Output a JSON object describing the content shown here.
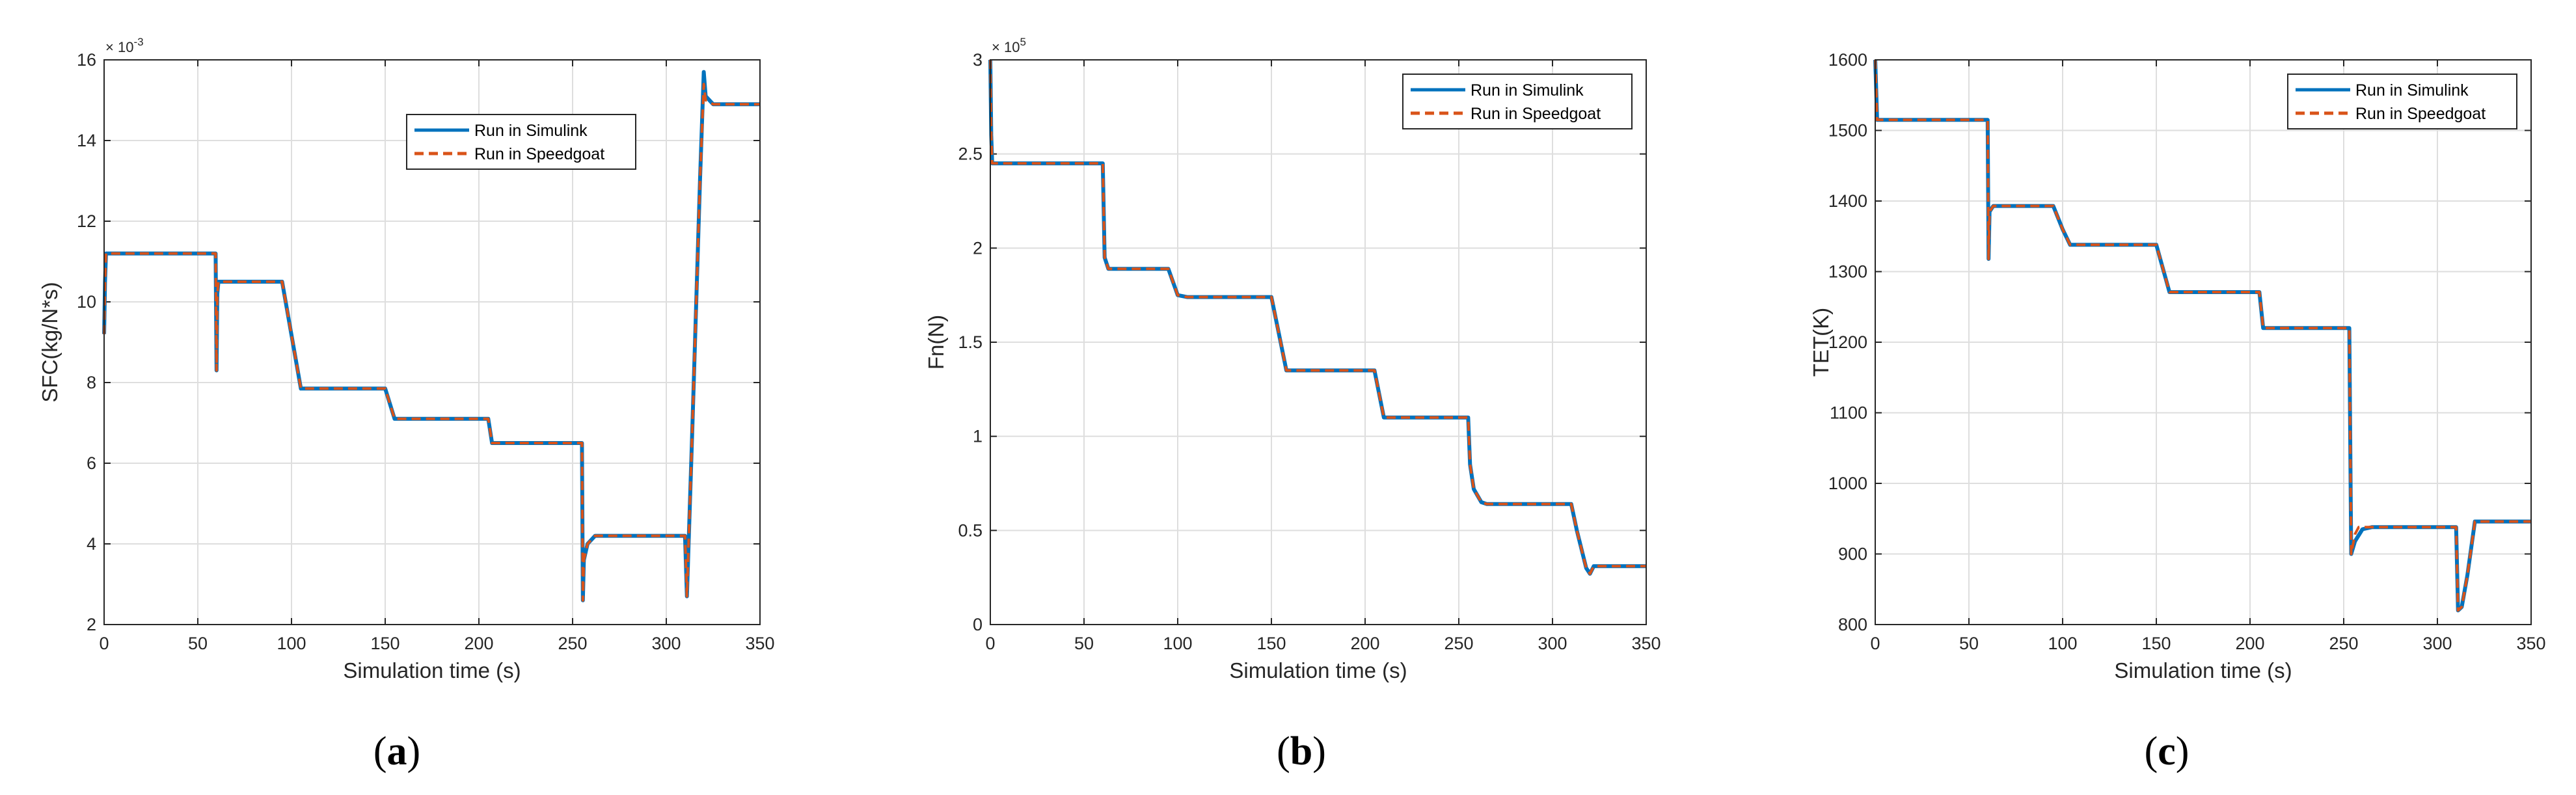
{
  "chart_data": [
    {
      "type": "line",
      "panel_label_open": "(",
      "panel_label_letter": "a",
      "panel_label_close": ")",
      "xlabel": "Simulation time (s)",
      "ylabel": "SFC(kg/N*s)",
      "exponent_base": "× 10",
      "exponent_power": "-3",
      "xlim": [
        0,
        350
      ],
      "ylim": [
        2,
        16
      ],
      "xticks": [
        0,
        50,
        100,
        150,
        200,
        250,
        300,
        350
      ],
      "yticks": [
        2,
        4,
        6,
        8,
        10,
        12,
        14,
        16
      ],
      "grid": true,
      "legend_position": "top-right",
      "series": [
        {
          "name": "Run in Simulink",
          "color": "#0072BD",
          "style": "solid",
          "points": [
            [
              0,
              9.2
            ],
            [
              0.5,
              10.5
            ],
            [
              1,
              11.2
            ],
            [
              59.5,
              11.2
            ],
            [
              60,
              8.3
            ],
            [
              60.4,
              10.2
            ],
            [
              61,
              10.5
            ],
            [
              95,
              10.5
            ],
            [
              105,
              7.85
            ],
            [
              150,
              7.85
            ],
            [
              155,
              7.1
            ],
            [
              205,
              7.1
            ],
            [
              207,
              6.5
            ],
            [
              255,
              6.5
            ],
            [
              255.5,
              2.6
            ],
            [
              256,
              3.6
            ],
            [
              258,
              4.0
            ],
            [
              262,
              4.2
            ],
            [
              310,
              4.2
            ],
            [
              311,
              2.7
            ],
            [
              314,
              7
            ],
            [
              318,
              13
            ],
            [
              320,
              15.7
            ],
            [
              321,
              15.1
            ],
            [
              325,
              14.9
            ],
            [
              350,
              14.9
            ]
          ]
        },
        {
          "name": "Run in Speedgoat",
          "color": "#D95319",
          "style": "dashed",
          "points": [
            [
              0,
              9.2
            ],
            [
              0.5,
              10.5
            ],
            [
              1,
              11.2
            ],
            [
              59.5,
              11.2
            ],
            [
              60,
              8.3
            ],
            [
              60.4,
              10.2
            ],
            [
              61,
              10.5
            ],
            [
              95,
              10.5
            ],
            [
              105,
              7.85
            ],
            [
              150,
              7.85
            ],
            [
              155,
              7.1
            ],
            [
              205,
              7.1
            ],
            [
              207,
              6.5
            ],
            [
              255,
              6.5
            ],
            [
              255.5,
              2.6
            ],
            [
              256,
              3.6
            ],
            [
              258,
              4.0
            ],
            [
              262,
              4.2
            ],
            [
              310,
              4.2
            ],
            [
              311,
              2.7
            ],
            [
              314,
              7
            ],
            [
              318,
              13
            ],
            [
              320,
              15.4
            ],
            [
              321,
              15.0
            ],
            [
              325,
              14.9
            ],
            [
              350,
              14.9
            ]
          ]
        }
      ]
    },
    {
      "type": "line",
      "panel_label_open": "(",
      "panel_label_letter": "b",
      "panel_label_close": ")",
      "xlabel": "Simulation time (s)",
      "ylabel": "Fn(N)",
      "exponent_base": "× 10",
      "exponent_power": "5",
      "xlim": [
        0,
        350
      ],
      "ylim": [
        0,
        3
      ],
      "xticks": [
        0,
        50,
        100,
        150,
        200,
        250,
        300,
        350
      ],
      "yticks": [
        0,
        0.5,
        1,
        1.5,
        2,
        2.5,
        3
      ],
      "grid": true,
      "legend_position": "top-right",
      "series": [
        {
          "name": "Run in Simulink",
          "color": "#0072BD",
          "style": "solid",
          "points": [
            [
              0,
              3.0
            ],
            [
              0.5,
              2.6
            ],
            [
              1,
              2.45
            ],
            [
              60,
              2.45
            ],
            [
              61,
              1.95
            ],
            [
              63,
              1.89
            ],
            [
              95,
              1.89
            ],
            [
              100,
              1.75
            ],
            [
              105,
              1.74
            ],
            [
              150,
              1.74
            ],
            [
              158,
              1.35
            ],
            [
              205,
              1.35
            ],
            [
              210,
              1.1
            ],
            [
              255,
              1.1
            ],
            [
              256,
              0.85
            ],
            [
              258,
              0.72
            ],
            [
              262,
              0.65
            ],
            [
              265,
              0.64
            ],
            [
              310,
              0.64
            ],
            [
              313,
              0.5
            ],
            [
              318,
              0.3
            ],
            [
              320,
              0.27
            ],
            [
              322,
              0.31
            ],
            [
              350,
              0.31
            ]
          ]
        },
        {
          "name": "Run in Speedgoat",
          "color": "#D95319",
          "style": "dashed",
          "points": [
            [
              0,
              3.0
            ],
            [
              0.5,
              2.6
            ],
            [
              1,
              2.45
            ],
            [
              60,
              2.45
            ],
            [
              61,
              1.95
            ],
            [
              63,
              1.89
            ],
            [
              95,
              1.89
            ],
            [
              100,
              1.75
            ],
            [
              105,
              1.74
            ],
            [
              150,
              1.74
            ],
            [
              158,
              1.35
            ],
            [
              205,
              1.35
            ],
            [
              210,
              1.1
            ],
            [
              255,
              1.1
            ],
            [
              256,
              0.85
            ],
            [
              258,
              0.72
            ],
            [
              262,
              0.65
            ],
            [
              265,
              0.64
            ],
            [
              310,
              0.64
            ],
            [
              313,
              0.5
            ],
            [
              318,
              0.3
            ],
            [
              320,
              0.27
            ],
            [
              322,
              0.31
            ],
            [
              350,
              0.31
            ]
          ]
        }
      ]
    },
    {
      "type": "line",
      "panel_label_open": "(",
      "panel_label_letter": "c",
      "panel_label_close": ")",
      "xlabel": "Simulation time (s)",
      "ylabel": "TET(K)",
      "exponent_base": "",
      "exponent_power": "",
      "xlim": [
        0,
        350
      ],
      "ylim": [
        800,
        1600
      ],
      "xticks": [
        0,
        50,
        100,
        150,
        200,
        250,
        300,
        350
      ],
      "yticks": [
        800,
        900,
        1000,
        1100,
        1200,
        1300,
        1400,
        1500,
        1600
      ],
      "grid": true,
      "legend_position": "top-right",
      "series": [
        {
          "name": "Run in Simulink",
          "color": "#0072BD",
          "style": "solid",
          "points": [
            [
              0,
              1600
            ],
            [
              0.5,
              1560
            ],
            [
              1,
              1515
            ],
            [
              60,
              1515
            ],
            [
              60.5,
              1318
            ],
            [
              61,
              1385
            ],
            [
              63,
              1393
            ],
            [
              95,
              1393
            ],
            [
              100,
              1360
            ],
            [
              104,
              1338
            ],
            [
              150,
              1338
            ],
            [
              157,
              1271
            ],
            [
              205,
              1271
            ],
            [
              207,
              1220
            ],
            [
              253,
              1220
            ],
            [
              254,
              900
            ],
            [
              256,
              918
            ],
            [
              260,
              935
            ],
            [
              265,
              938
            ],
            [
              310,
              938
            ],
            [
              311,
              820
            ],
            [
              313,
              825
            ],
            [
              316,
              870
            ],
            [
              320,
              946
            ],
            [
              350,
              946
            ]
          ]
        },
        {
          "name": "Run in Speedgoat",
          "color": "#D95319",
          "style": "dashed",
          "points": [
            [
              0,
              1600
            ],
            [
              0.5,
              1560
            ],
            [
              1,
              1515
            ],
            [
              60,
              1515
            ],
            [
              60.5,
              1318
            ],
            [
              61,
              1385
            ],
            [
              63,
              1393
            ],
            [
              95,
              1393
            ],
            [
              100,
              1360
            ],
            [
              104,
              1338
            ],
            [
              150,
              1338
            ],
            [
              157,
              1271
            ],
            [
              205,
              1271
            ],
            [
              207,
              1220
            ],
            [
              253,
              1220
            ],
            [
              254,
              900
            ],
            [
              256,
              928
            ],
            [
              258,
              938
            ],
            [
              265,
              938
            ],
            [
              310,
              938
            ],
            [
              311,
              820
            ],
            [
              313,
              825
            ],
            [
              316,
              870
            ],
            [
              320,
              946
            ],
            [
              350,
              946
            ]
          ]
        }
      ]
    }
  ]
}
